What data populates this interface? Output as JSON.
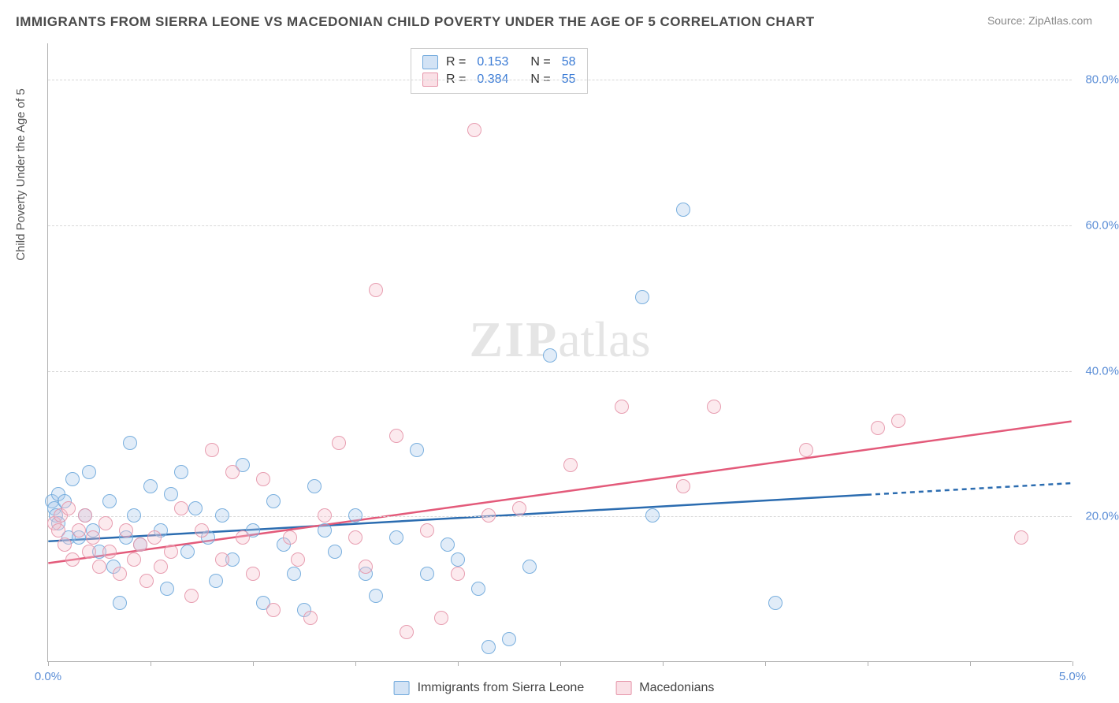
{
  "title": "IMMIGRANTS FROM SIERRA LEONE VS MACEDONIAN CHILD POVERTY UNDER THE AGE OF 5 CORRELATION CHART",
  "source_label": "Source: ",
  "source_value": "ZipAtlas.com",
  "y_axis_label": "Child Poverty Under the Age of 5",
  "watermark_a": "ZIP",
  "watermark_b": "atlas",
  "chart": {
    "type": "scatter",
    "xlim": [
      0.0,
      5.0
    ],
    "ylim": [
      0.0,
      85.0
    ],
    "x_tick_positions": [
      0.0,
      0.5,
      1.0,
      1.5,
      2.0,
      2.5,
      3.0,
      3.5,
      4.0,
      4.5,
      5.0
    ],
    "x_tick_labels": {
      "0.0": "0.0%",
      "5.0": "5.0%"
    },
    "y_gridlines": [
      20.0,
      40.0,
      60.0,
      80.0
    ],
    "y_tick_labels": {
      "20.0": "20.0%",
      "40.0": "40.0%",
      "60.0": "60.0%",
      "80.0": "80.0%"
    },
    "background_color": "#ffffff",
    "grid_color": "#d8d8d8",
    "axis_color": "#b0b0b0",
    "title_color": "#4a4a4a",
    "title_fontsize": 17,
    "label_fontsize": 15,
    "tick_label_color": "#5a8dd6",
    "marker_size": 18,
    "marker_opacity_fill": 0.35,
    "marker_opacity_stroke": 0.9
  },
  "series": [
    {
      "id": "sierra_leone",
      "label": "Immigrants from Sierra Leone",
      "color_fill": "#a8c8ec",
      "color_stroke": "#6fa8dc",
      "trend_color": "#2b6cb0",
      "trend_width": 2.5,
      "trend_dash_tail": true,
      "R": 0.153,
      "N": 58,
      "trend": {
        "x1": 0.0,
        "y1": 16.5,
        "x2": 5.0,
        "y2": 24.5,
        "solid_until_x": 4.0
      },
      "points": [
        [
          0.02,
          22
        ],
        [
          0.03,
          21
        ],
        [
          0.04,
          20
        ],
        [
          0.05,
          19
        ],
        [
          0.05,
          23
        ],
        [
          0.08,
          22
        ],
        [
          0.1,
          17
        ],
        [
          0.12,
          25
        ],
        [
          0.15,
          17
        ],
        [
          0.18,
          20
        ],
        [
          0.2,
          26
        ],
        [
          0.22,
          18
        ],
        [
          0.25,
          15
        ],
        [
          0.3,
          22
        ],
        [
          0.32,
          13
        ],
        [
          0.35,
          8
        ],
        [
          0.38,
          17
        ],
        [
          0.4,
          30
        ],
        [
          0.42,
          20
        ],
        [
          0.45,
          16
        ],
        [
          0.5,
          24
        ],
        [
          0.55,
          18
        ],
        [
          0.58,
          10
        ],
        [
          0.6,
          23
        ],
        [
          0.65,
          26
        ],
        [
          0.68,
          15
        ],
        [
          0.72,
          21
        ],
        [
          0.78,
          17
        ],
        [
          0.82,
          11
        ],
        [
          0.85,
          20
        ],
        [
          0.9,
          14
        ],
        [
          0.95,
          27
        ],
        [
          1.0,
          18
        ],
        [
          1.05,
          8
        ],
        [
          1.1,
          22
        ],
        [
          1.15,
          16
        ],
        [
          1.2,
          12
        ],
        [
          1.25,
          7
        ],
        [
          1.3,
          24
        ],
        [
          1.35,
          18
        ],
        [
          1.4,
          15
        ],
        [
          1.5,
          20
        ],
        [
          1.55,
          12
        ],
        [
          1.6,
          9
        ],
        [
          1.7,
          17
        ],
        [
          1.8,
          29
        ],
        [
          1.85,
          12
        ],
        [
          1.95,
          16
        ],
        [
          2.0,
          14
        ],
        [
          2.1,
          10
        ],
        [
          2.15,
          2
        ],
        [
          2.25,
          3
        ],
        [
          2.35,
          13
        ],
        [
          2.45,
          42
        ],
        [
          2.9,
          50
        ],
        [
          2.95,
          20
        ],
        [
          3.1,
          62
        ],
        [
          3.55,
          8
        ]
      ]
    },
    {
      "id": "macedonians",
      "label": "Macedonians",
      "color_fill": "#f5c2cd",
      "color_stroke": "#e696aa",
      "trend_color": "#e35a7a",
      "trend_width": 2.5,
      "trend_dash_tail": false,
      "R": 0.384,
      "N": 55,
      "trend": {
        "x1": 0.0,
        "y1": 13.5,
        "x2": 5.0,
        "y2": 33.0,
        "solid_until_x": 5.0
      },
      "points": [
        [
          0.03,
          19
        ],
        [
          0.05,
          18
        ],
        [
          0.06,
          20
        ],
        [
          0.08,
          16
        ],
        [
          0.1,
          21
        ],
        [
          0.12,
          14
        ],
        [
          0.15,
          18
        ],
        [
          0.18,
          20
        ],
        [
          0.2,
          15
        ],
        [
          0.22,
          17
        ],
        [
          0.25,
          13
        ],
        [
          0.28,
          19
        ],
        [
          0.3,
          15
        ],
        [
          0.35,
          12
        ],
        [
          0.38,
          18
        ],
        [
          0.42,
          14
        ],
        [
          0.45,
          16
        ],
        [
          0.48,
          11
        ],
        [
          0.52,
          17
        ],
        [
          0.55,
          13
        ],
        [
          0.6,
          15
        ],
        [
          0.65,
          21
        ],
        [
          0.7,
          9
        ],
        [
          0.75,
          18
        ],
        [
          0.8,
          29
        ],
        [
          0.85,
          14
        ],
        [
          0.9,
          26
        ],
        [
          0.95,
          17
        ],
        [
          1.0,
          12
        ],
        [
          1.05,
          25
        ],
        [
          1.1,
          7
        ],
        [
          1.18,
          17
        ],
        [
          1.22,
          14
        ],
        [
          1.28,
          6
        ],
        [
          1.35,
          20
        ],
        [
          1.42,
          30
        ],
        [
          1.5,
          17
        ],
        [
          1.55,
          13
        ],
        [
          1.6,
          51
        ],
        [
          1.7,
          31
        ],
        [
          1.75,
          4
        ],
        [
          1.85,
          18
        ],
        [
          1.92,
          6
        ],
        [
          2.0,
          12
        ],
        [
          2.08,
          73
        ],
        [
          2.15,
          20
        ],
        [
          2.3,
          21
        ],
        [
          2.55,
          27
        ],
        [
          2.8,
          35
        ],
        [
          3.1,
          24
        ],
        [
          3.25,
          35
        ],
        [
          3.7,
          29
        ],
        [
          4.05,
          32
        ],
        [
          4.15,
          33
        ],
        [
          4.75,
          17
        ]
      ]
    }
  ],
  "legend_stats": {
    "r_prefix": "R = ",
    "n_prefix": "N = "
  }
}
